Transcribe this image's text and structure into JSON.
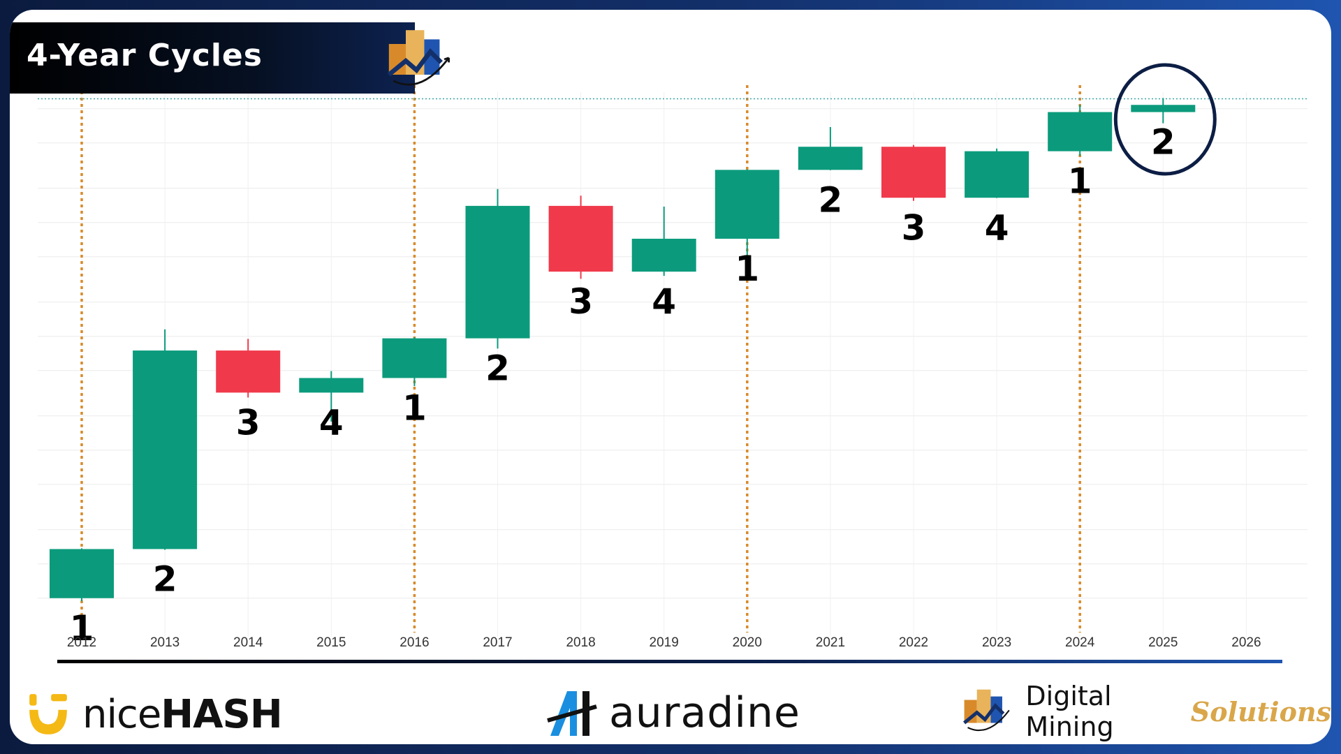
{
  "header": {
    "title": "4-Year Cycles"
  },
  "chart_data": {
    "type": "candlestick",
    "categories": [
      "2012",
      "2013",
      "2014",
      "2015",
      "2016",
      "2017",
      "2018",
      "2019",
      "2020",
      "2021",
      "2022",
      "2023",
      "2024",
      "2025",
      "2026"
    ],
    "candles": [
      {
        "year": "2012",
        "open": 5,
        "close": 13.5,
        "high": 13.7,
        "low": 4.7,
        "label": "1"
      },
      {
        "year": "2013",
        "open": 13.5,
        "close": 750,
        "high": 1150,
        "low": 13.3,
        "label": "2"
      },
      {
        "year": "2014",
        "open": 750,
        "close": 320,
        "high": 950,
        "low": 290,
        "label": "3"
      },
      {
        "year": "2015",
        "open": 320,
        "close": 430,
        "high": 495,
        "low": 178,
        "label": "4"
      },
      {
        "year": "2016",
        "open": 430,
        "close": 960,
        "high": 980,
        "low": 365,
        "label": "1"
      },
      {
        "year": "2017",
        "open": 960,
        "close": 14000,
        "high": 19700,
        "low": 780,
        "label": "2"
      },
      {
        "year": "2018",
        "open": 14000,
        "close": 3700,
        "high": 17200,
        "low": 3200,
        "label": "3"
      },
      {
        "year": "2019",
        "open": 3700,
        "close": 7200,
        "high": 13800,
        "low": 3400,
        "label": "4"
      },
      {
        "year": "2020",
        "open": 7200,
        "close": 29000,
        "high": 29300,
        "low": 3850,
        "label": "1"
      },
      {
        "year": "2021",
        "open": 29000,
        "close": 46300,
        "high": 69000,
        "low": 28800,
        "label": "2"
      },
      {
        "year": "2022",
        "open": 46300,
        "close": 16500,
        "high": 48000,
        "low": 15500,
        "label": "3"
      },
      {
        "year": "2023",
        "open": 16500,
        "close": 42300,
        "high": 44700,
        "low": 16400,
        "label": "4"
      },
      {
        "year": "2024",
        "open": 42300,
        "close": 93400,
        "high": 108000,
        "low": 38500,
        "label": "1"
      },
      {
        "year": "2025",
        "open": 93400,
        "close": 108000,
        "high": 124000,
        "low": 74500,
        "label": "2"
      }
    ],
    "cycle_start_years": [
      "2012",
      "2016",
      "2020",
      "2024"
    ],
    "highlighted_year": "2025",
    "y_scale": "log",
    "ylim": [
      3,
      140000
    ],
    "grid": true,
    "colors": {
      "up": "#0b9b7c",
      "down": "#f03a4b",
      "cycle_line": "#d88a2a",
      "highlight_circle": "#0d1e45",
      "reference_line": "#3aa5a5"
    }
  },
  "footer": {
    "brand_nicehash": {
      "light": "nice",
      "bold": "HASH"
    },
    "brand_auradine": "auradine",
    "brand_dms": {
      "part1": "Digital Mining",
      "part2": "Solutions"
    }
  }
}
